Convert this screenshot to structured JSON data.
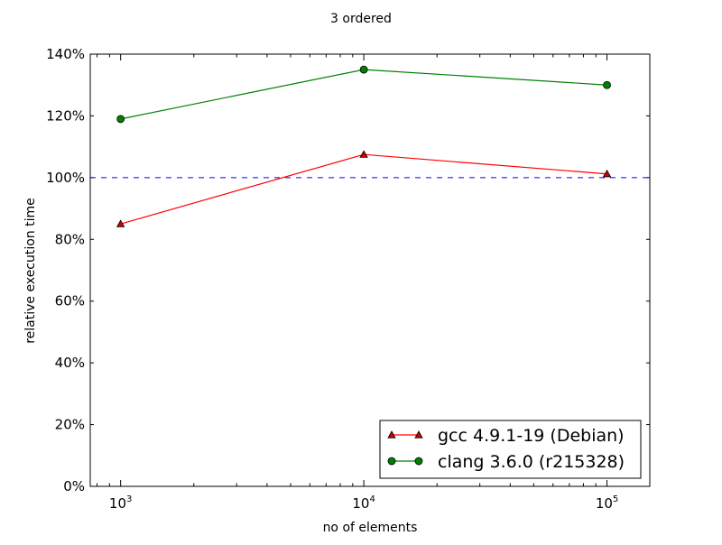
{
  "chart_data": {
    "type": "line",
    "title": "3 ordered",
    "xlabel": "no of elements",
    "ylabel": "relative execution time",
    "xscale": "log",
    "xlim": [
      750,
      150000
    ],
    "ylim": [
      0,
      140
    ],
    "x_ticks": [
      {
        "value": 1000,
        "base": "10",
        "exp": "3"
      },
      {
        "value": 10000,
        "base": "10",
        "exp": "4"
      },
      {
        "value": 100000,
        "base": "10",
        "exp": "5"
      }
    ],
    "y_ticks": [
      {
        "value": 0,
        "label": "0%"
      },
      {
        "value": 20,
        "label": "20%"
      },
      {
        "value": 40,
        "label": "40%"
      },
      {
        "value": 60,
        "label": "60%"
      },
      {
        "value": 80,
        "label": "80%"
      },
      {
        "value": 100,
        "label": "100%"
      },
      {
        "value": 120,
        "label": "120%"
      },
      {
        "value": 140,
        "label": "140%"
      }
    ],
    "reference_line": {
      "value": 100,
      "color": "#0000ff",
      "style": "dashed"
    },
    "x": [
      1000,
      10000,
      100000
    ],
    "series": [
      {
        "name": "gcc 4.9.1-19 (Debian)",
        "values": [
          85,
          107.5,
          101.2
        ],
        "color": "#ff0000",
        "fill": "#cc0000",
        "marker": "triangle"
      },
      {
        "name": "clang 3.6.0 (r215328)",
        "values": [
          119,
          135,
          130
        ],
        "color": "#008000",
        "fill": "#008000",
        "marker": "circle"
      }
    ],
    "legend": {
      "position": "lower-right"
    }
  }
}
